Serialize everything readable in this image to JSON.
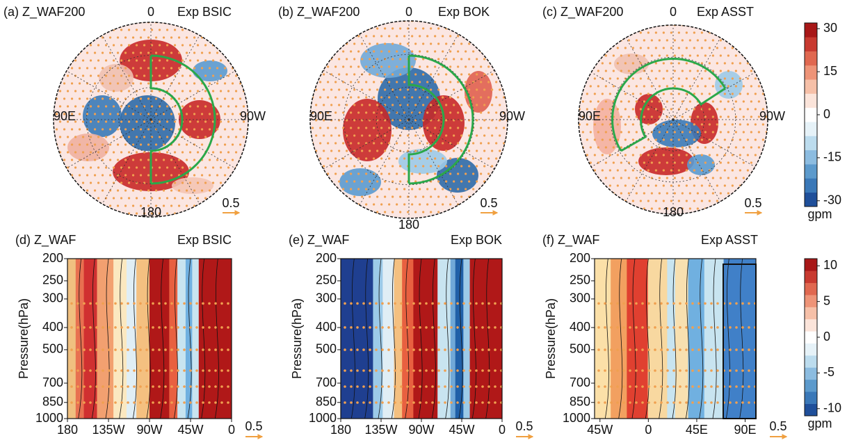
{
  "chart_data": [
    {
      "type": "polar-map",
      "title": "(a) Z_WAF200",
      "experiment": "Exp BSIC",
      "lon_labels": {
        "top": "0",
        "left": "90E",
        "right": "90W",
        "bottom": "180"
      },
      "scale_label": "0.5"
    },
    {
      "type": "polar-map",
      "title": "(b) Z_WAF200",
      "experiment": "Exp BOK",
      "lon_labels": {
        "top": "0",
        "left": "90E",
        "right": "90W",
        "bottom": "180"
      },
      "scale_label": "0.5"
    },
    {
      "type": "polar-map",
      "title": "(c) Z_WAF200",
      "experiment": "Exp ASST",
      "lon_labels": {
        "top": "0",
        "left": "90E",
        "right": "90W",
        "bottom": "180"
      },
      "scale_label": "0.5"
    },
    {
      "type": "cross-section",
      "title": "(d) Z_WAF",
      "experiment": "Exp BSIC",
      "ylabel": "Pressure(hPa)",
      "ylog": true,
      "ylim": [
        1000,
        200
      ],
      "yticks": [
        200,
        250,
        300,
        400,
        500,
        700,
        850,
        1000
      ],
      "xlim": [
        -180,
        0
      ],
      "xticks": [
        {
          "value": -180,
          "label": "180"
        },
        {
          "value": -135,
          "label": "135W"
        },
        {
          "value": -90,
          "label": "90W"
        },
        {
          "value": -45,
          "label": "45W"
        },
        0
      ],
      "scale_label": "0.5"
    },
    {
      "type": "cross-section",
      "title": "(e) Z_WAF",
      "experiment": "Exp BOK",
      "ylabel": "Pressure(hPa)",
      "ylog": true,
      "ylim": [
        1000,
        200
      ],
      "yticks": [
        200,
        250,
        300,
        400,
        500,
        700,
        850,
        1000
      ],
      "xlim": [
        -180,
        0
      ],
      "xticks": [
        {
          "value": -180,
          "label": "180"
        },
        {
          "value": -135,
          "label": "135W"
        },
        {
          "value": -90,
          "label": "90W"
        },
        {
          "value": -45,
          "label": "45W"
        },
        0
      ],
      "scale_label": "0.5"
    },
    {
      "type": "cross-section",
      "title": "(f) Z_WAF",
      "experiment": "Exp ASST",
      "ylabel": "Pressure(hPa)",
      "ylog": true,
      "ylim": [
        1000,
        200
      ],
      "yticks": [
        200,
        250,
        300,
        400,
        500,
        700,
        850,
        1000
      ],
      "xlim": [
        -50,
        100
      ],
      "xticks": [
        {
          "value": -45,
          "label": "45W"
        },
        0,
        {
          "value": 45,
          "label": "45E"
        },
        {
          "value": 90,
          "label": "90E"
        }
      ],
      "scale_label": "0.5"
    }
  ],
  "colorbars": [
    {
      "ticks": [
        30,
        15,
        0,
        -15,
        -30
      ],
      "lim": [
        -32,
        32
      ],
      "unit": "gpm"
    },
    {
      "ticks": [
        10,
        5,
        0,
        -5,
        -10
      ],
      "lim": [
        -11,
        11
      ],
      "unit": "gpm"
    }
  ]
}
